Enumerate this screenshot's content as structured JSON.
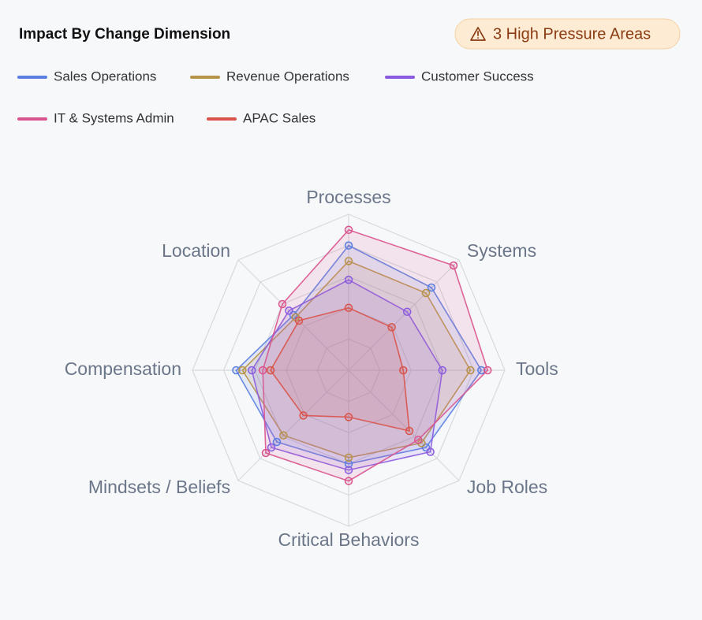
{
  "chart_data": {
    "type": "radar",
    "title": "Impact By Change Dimension",
    "annotation": "3 High Pressure Areas",
    "categories": [
      "Processes",
      "Systems",
      "Tools",
      "Job Roles",
      "Critical Behaviors",
      "Mindsets / Beliefs",
      "Compensation",
      "Location"
    ],
    "series": [
      {
        "name": "Sales Operations",
        "color": "#5b7fe0",
        "values": [
          80,
          75,
          85,
          70,
          60,
          65,
          72,
          50
        ]
      },
      {
        "name": "Revenue Operations",
        "color": "#b8934a",
        "values": [
          70,
          70,
          78,
          66,
          56,
          59,
          68,
          48
        ]
      },
      {
        "name": "Customer Success",
        "color": "#8a5be0",
        "values": [
          58,
          53,
          60,
          74,
          64,
          70,
          62,
          54
        ]
      },
      {
        "name": "IT & Systems Admin",
        "color": "#d9548f",
        "values": [
          90,
          95,
          89,
          63,
          71,
          75,
          55,
          60
        ]
      },
      {
        "name": "APAC Sales",
        "color": "#d9534a",
        "values": [
          40,
          39,
          35,
          55,
          30,
          41,
          50,
          45
        ]
      }
    ],
    "rlim": [
      0,
      100
    ],
    "rticks": [
      20,
      40,
      60,
      80,
      100
    ],
    "grid": true
  }
}
